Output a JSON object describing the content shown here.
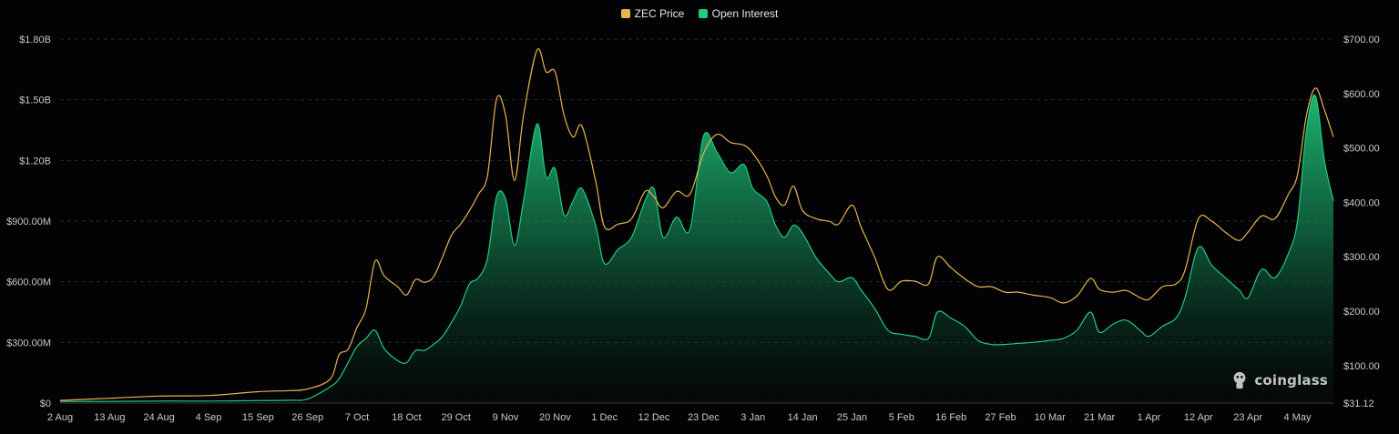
{
  "legend": {
    "price_label": "ZEC Price",
    "oi_label": "Open Interest"
  },
  "colors": {
    "price": "#E8B44C",
    "oi": "#1FCB7C",
    "grid": "#2a2a30",
    "background": "#030306"
  },
  "watermark": "coinglass",
  "chart_data": {
    "type": "area",
    "x_labels": [
      "2 Aug",
      "13 Aug",
      "24 Aug",
      "4 Sep",
      "15 Sep",
      "26 Sep",
      "7 Oct",
      "18 Oct",
      "29 Oct",
      "9 Nov",
      "20 Nov",
      "1 Dec",
      "12 Dec",
      "23 Dec",
      "3 Jan",
      "14 Jan",
      "25 Jan",
      "5 Feb",
      "16 Feb",
      "27 Feb",
      "10 Mar",
      "21 Mar",
      "1 Apr",
      "12 Apr",
      "23 Apr",
      "4 May"
    ],
    "left_axis": {
      "label": "Open Interest",
      "ticks": [
        "$0",
        "$300.00M",
        "$600.00M",
        "$900.00M",
        "$1.20B",
        "$1.50B",
        "$1.80B"
      ],
      "tick_values": [
        0,
        300,
        600,
        900,
        1200,
        1500,
        1800
      ],
      "unit": "M USD",
      "ylim": [
        0,
        1800
      ]
    },
    "right_axis": {
      "label": "ZEC Price",
      "ticks": [
        "$31.12",
        "$100.00",
        "$200.00",
        "$300.00",
        "$400.00",
        "$500.00",
        "$600.00",
        "$700.00"
      ],
      "tick_values": [
        31.12,
        100,
        200,
        300,
        400,
        500,
        600,
        700
      ],
      "ylim": [
        31.12,
        700
      ]
    },
    "grid": true,
    "legend_position": "top-center",
    "series": [
      {
        "name": "ZEC Price",
        "axis": "right",
        "type": "line",
        "points": [
          [
            "2 Aug",
            36
          ],
          [
            "13 Aug",
            40
          ],
          [
            "24 Aug",
            44
          ],
          [
            "4 Sep",
            45
          ],
          [
            "15 Sep",
            52
          ],
          [
            "22 Sep",
            54
          ],
          [
            "26 Sep",
            57
          ],
          [
            "1 Oct",
            75
          ],
          [
            "3 Oct",
            120
          ],
          [
            "5 Oct",
            130
          ],
          [
            "7 Oct",
            170
          ],
          [
            "9 Oct",
            205
          ],
          [
            "11 Oct",
            292
          ],
          [
            "13 Oct",
            265
          ],
          [
            "16 Oct",
            245
          ],
          [
            "18 Oct",
            230
          ],
          [
            "20 Oct",
            258
          ],
          [
            "22 Oct",
            253
          ],
          [
            "24 Oct",
            263
          ],
          [
            "26 Oct",
            300
          ],
          [
            "28 Oct",
            340
          ],
          [
            "30 Oct",
            360
          ],
          [
            "1 Nov",
            385
          ],
          [
            "3 Nov",
            415
          ],
          [
            "5 Nov",
            450
          ],
          [
            "7 Nov",
            590
          ],
          [
            "9 Nov",
            560
          ],
          [
            "11 Nov",
            440
          ],
          [
            "13 Nov",
            560
          ],
          [
            "16 Nov",
            680
          ],
          [
            "18 Nov",
            640
          ],
          [
            "20 Nov",
            640
          ],
          [
            "22 Nov",
            560
          ],
          [
            "24 Nov",
            520
          ],
          [
            "26 Nov",
            540
          ],
          [
            "29 Nov",
            440
          ],
          [
            "1 Dec",
            355
          ],
          [
            "4 Dec",
            360
          ],
          [
            "7 Dec",
            370
          ],
          [
            "10 Dec",
            420
          ],
          [
            "12 Dec",
            410
          ],
          [
            "14 Dec",
            390
          ],
          [
            "17 Dec",
            420
          ],
          [
            "20 Dec",
            415
          ],
          [
            "23 Dec",
            490
          ],
          [
            "26 Dec",
            525
          ],
          [
            "29 Dec",
            510
          ],
          [
            "1 Jan",
            505
          ],
          [
            "3 Jan",
            490
          ],
          [
            "6 Jan",
            450
          ],
          [
            "8 Jan",
            410
          ],
          [
            "10 Jan",
            395
          ],
          [
            "12 Jan",
            430
          ],
          [
            "14 Jan",
            385
          ],
          [
            "17 Jan",
            370
          ],
          [
            "20 Jan",
            365
          ],
          [
            "22 Jan",
            360
          ],
          [
            "25 Jan",
            395
          ],
          [
            "27 Jan",
            355
          ],
          [
            "30 Jan",
            300
          ],
          [
            "2 Feb",
            240
          ],
          [
            "5 Feb",
            255
          ],
          [
            "8 Feb",
            255
          ],
          [
            "11 Feb",
            250
          ],
          [
            "13 Feb",
            300
          ],
          [
            "16 Feb",
            280
          ],
          [
            "19 Feb",
            260
          ],
          [
            "22 Feb",
            245
          ],
          [
            "25 Feb",
            245
          ],
          [
            "28 Feb",
            235
          ],
          [
            "3 Mar",
            235
          ],
          [
            "6 Mar",
            230
          ],
          [
            "10 Mar",
            225
          ],
          [
            "13 Mar",
            215
          ],
          [
            "16 Mar",
            228
          ],
          [
            "19 Mar",
            260
          ],
          [
            "21 Mar",
            240
          ],
          [
            "24 Mar",
            235
          ],
          [
            "27 Mar",
            238
          ],
          [
            "30 Mar",
            225
          ],
          [
            "1 Apr",
            222
          ],
          [
            "4 Apr",
            245
          ],
          [
            "7 Apr",
            250
          ],
          [
            "9 Apr",
            275
          ],
          [
            "12 Apr",
            370
          ],
          [
            "15 Apr",
            365
          ],
          [
            "18 Apr",
            345
          ],
          [
            "21 Apr",
            330
          ],
          [
            "23 Apr",
            345
          ],
          [
            "26 Apr",
            375
          ],
          [
            "29 Apr",
            370
          ],
          [
            "2 May",
            415
          ],
          [
            "4 May",
            450
          ],
          [
            "6 May",
            560
          ],
          [
            "8 May",
            610
          ],
          [
            "10 May",
            570
          ],
          [
            "12 May",
            520
          ]
        ]
      },
      {
        "name": "Open Interest",
        "axis": "left",
        "type": "area",
        "unit": "M USD",
        "points": [
          [
            "2 Aug",
            8
          ],
          [
            "13 Aug",
            8
          ],
          [
            "24 Aug",
            10
          ],
          [
            "4 Sep",
            10
          ],
          [
            "15 Sep",
            12
          ],
          [
            "22 Sep",
            14
          ],
          [
            "26 Sep",
            20
          ],
          [
            "1 Oct",
            80
          ],
          [
            "3 Oct",
            120
          ],
          [
            "5 Oct",
            200
          ],
          [
            "7 Oct",
            280
          ],
          [
            "9 Oct",
            320
          ],
          [
            "11 Oct",
            360
          ],
          [
            "13 Oct",
            270
          ],
          [
            "16 Oct",
            210
          ],
          [
            "18 Oct",
            200
          ],
          [
            "20 Oct",
            260
          ],
          [
            "22 Oct",
            260
          ],
          [
            "24 Oct",
            290
          ],
          [
            "26 Oct",
            330
          ],
          [
            "28 Oct",
            400
          ],
          [
            "30 Oct",
            480
          ],
          [
            "1 Nov",
            590
          ],
          [
            "3 Nov",
            620
          ],
          [
            "5 Nov",
            720
          ],
          [
            "7 Nov",
            1020
          ],
          [
            "9 Nov",
            1010
          ],
          [
            "11 Nov",
            780
          ],
          [
            "13 Nov",
            1000
          ],
          [
            "16 Nov",
            1380
          ],
          [
            "18 Nov",
            1120
          ],
          [
            "20 Nov",
            1160
          ],
          [
            "22 Nov",
            930
          ],
          [
            "24 Nov",
            1000
          ],
          [
            "26 Nov",
            1060
          ],
          [
            "29 Nov",
            880
          ],
          [
            "1 Dec",
            690
          ],
          [
            "4 Dec",
            760
          ],
          [
            "7 Dec",
            820
          ],
          [
            "10 Dec",
            1000
          ],
          [
            "12 Dec",
            1060
          ],
          [
            "14 Dec",
            820
          ],
          [
            "17 Dec",
            920
          ],
          [
            "20 Dec",
            860
          ],
          [
            "23 Dec",
            1320
          ],
          [
            "26 Dec",
            1240
          ],
          [
            "29 Dec",
            1140
          ],
          [
            "1 Jan",
            1180
          ],
          [
            "3 Jan",
            1060
          ],
          [
            "6 Jan",
            1000
          ],
          [
            "8 Jan",
            880
          ],
          [
            "10 Jan",
            820
          ],
          [
            "12 Jan",
            880
          ],
          [
            "14 Jan",
            840
          ],
          [
            "17 Jan",
            720
          ],
          [
            "20 Jan",
            640
          ],
          [
            "22 Jan",
            600
          ],
          [
            "25 Jan",
            620
          ],
          [
            "27 Jan",
            560
          ],
          [
            "30 Jan",
            470
          ],
          [
            "2 Feb",
            360
          ],
          [
            "5 Feb",
            340
          ],
          [
            "8 Feb",
            330
          ],
          [
            "11 Feb",
            320
          ],
          [
            "13 Feb",
            450
          ],
          [
            "16 Feb",
            420
          ],
          [
            "19 Feb",
            380
          ],
          [
            "22 Feb",
            310
          ],
          [
            "25 Feb",
            290
          ],
          [
            "28 Feb",
            290
          ],
          [
            "3 Mar",
            295
          ],
          [
            "6 Mar",
            300
          ],
          [
            "10 Mar",
            310
          ],
          [
            "13 Mar",
            320
          ],
          [
            "16 Mar",
            360
          ],
          [
            "19 Mar",
            450
          ],
          [
            "21 Mar",
            350
          ],
          [
            "24 Mar",
            390
          ],
          [
            "27 Mar",
            410
          ],
          [
            "30 Mar",
            360
          ],
          [
            "1 Apr",
            330
          ],
          [
            "4 Apr",
            380
          ],
          [
            "7 Apr",
            420
          ],
          [
            "9 Apr",
            520
          ],
          [
            "12 Apr",
            770
          ],
          [
            "15 Apr",
            680
          ],
          [
            "18 Apr",
            620
          ],
          [
            "21 Apr",
            560
          ],
          [
            "23 Apr",
            520
          ],
          [
            "26 Apr",
            660
          ],
          [
            "29 Apr",
            620
          ],
          [
            "2 May",
            740
          ],
          [
            "4 May",
            900
          ],
          [
            "6 May",
            1350
          ],
          [
            "8 May",
            1520
          ],
          [
            "10 May",
            1200
          ],
          [
            "12 May",
            1000
          ]
        ]
      }
    ]
  }
}
